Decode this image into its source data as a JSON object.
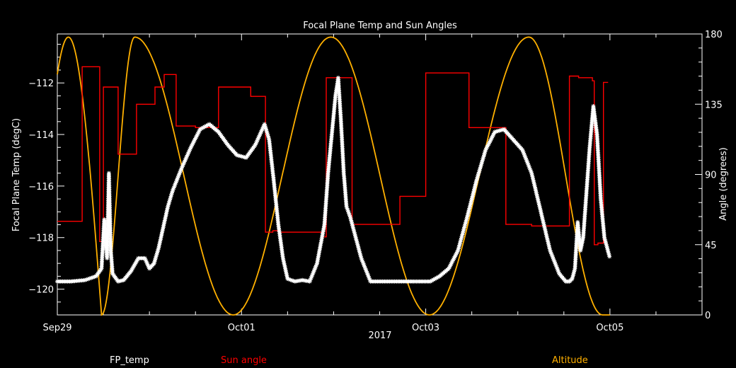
{
  "chart_data": {
    "type": "line",
    "title": "Focal Plane Temp and Sun Angles",
    "xlabel": "2017",
    "ylabel_left": "Focal Plane Temp (degC)",
    "ylabel_right": "Angle (degrees)",
    "x_ticks": [
      "Sep29",
      "Oct01",
      "Oct03",
      "Oct05"
    ],
    "x_tick_days": [
      0,
      2,
      4,
      6
    ],
    "x_range_days": [
      0,
      7.0
    ],
    "y_left_range": [
      -121,
      -110.1
    ],
    "y_left_ticks": [
      "−112",
      "−114",
      "−116",
      "−118",
      "−120"
    ],
    "y_left_tick_values": [
      -112,
      -114,
      -116,
      -118,
      -120
    ],
    "y_right_range": [
      0,
      180
    ],
    "y_right_ticks": [
      "180",
      "135",
      "90",
      "45",
      "0"
    ],
    "y_right_tick_values": [
      180,
      135,
      90,
      45,
      0
    ],
    "colors": {
      "fp_temp": "#ffffff",
      "sun_angle": "#ff0000",
      "altitude": "#ffb000"
    },
    "series": [
      {
        "name": "FP_temp",
        "marker": "asterisk",
        "x": [
          0.0,
          0.15,
          0.3,
          0.42,
          0.48,
          0.51,
          0.54,
          0.56,
          0.58,
          0.6,
          0.62,
          0.66,
          0.72,
          0.8,
          0.88,
          0.95,
          1.0,
          1.05,
          1.1,
          1.15,
          1.2,
          1.25,
          1.35,
          1.45,
          1.55,
          1.65,
          1.75,
          1.85,
          1.95,
          2.05,
          2.15,
          2.25,
          2.3,
          2.35,
          2.4,
          2.45,
          2.5,
          2.58,
          2.66,
          2.74,
          2.82,
          2.9,
          2.94,
          2.98,
          3.02,
          3.05,
          3.08,
          3.11,
          3.14,
          3.18,
          3.24,
          3.3,
          3.4,
          3.55,
          3.7,
          3.85,
          3.95,
          4.05,
          4.15,
          4.25,
          4.35,
          4.45,
          4.55,
          4.65,
          4.75,
          4.85,
          4.95,
          5.05,
          5.15,
          5.25,
          5.35,
          5.45,
          5.52,
          5.56,
          5.59,
          5.62,
          5.65,
          5.68,
          5.71,
          5.74,
          5.78,
          5.82,
          5.86,
          5.9,
          5.94,
          6.0
        ],
        "y": [
          -119.7,
          -119.7,
          -119.65,
          -119.5,
          -119.2,
          -117.3,
          -118.8,
          -115.5,
          -118.5,
          -119.4,
          -119.5,
          -119.7,
          -119.65,
          -119.3,
          -118.8,
          -118.8,
          -119.2,
          -119.0,
          -118.4,
          -117.6,
          -116.8,
          -116.2,
          -115.3,
          -114.5,
          -113.8,
          -113.6,
          -113.9,
          -114.4,
          -114.8,
          -114.9,
          -114.4,
          -113.6,
          -114.2,
          -115.8,
          -117.5,
          -118.8,
          -119.6,
          -119.7,
          -119.65,
          -119.7,
          -119.0,
          -117.5,
          -115.5,
          -114.0,
          -112.5,
          -111.8,
          -113.5,
          -115.5,
          -116.8,
          -117.2,
          -118.0,
          -118.8,
          -119.7,
          -119.7,
          -119.7,
          -119.7,
          -119.7,
          -119.7,
          -119.5,
          -119.2,
          -118.5,
          -117.2,
          -115.8,
          -114.6,
          -113.9,
          -113.8,
          -114.2,
          -114.6,
          -115.5,
          -117.0,
          -118.5,
          -119.4,
          -119.7,
          -119.7,
          -119.6,
          -119.2,
          -117.4,
          -118.5,
          -118.0,
          -116.5,
          -114.5,
          -112.9,
          -114.0,
          -116.5,
          -118.0,
          -118.8
        ]
      },
      {
        "name": "Sun angle",
        "step": true,
        "x": [
          0.0,
          0.27,
          0.27,
          0.46,
          0.46,
          0.5,
          0.5,
          0.66,
          0.66,
          0.86,
          0.86,
          1.06,
          1.06,
          1.16,
          1.16,
          1.29,
          1.29,
          1.5,
          1.5,
          1.75,
          1.75,
          2.1,
          2.1,
          2.26,
          2.26,
          2.34,
          2.34,
          2.4,
          2.4,
          2.88,
          2.88,
          2.92,
          2.92,
          3.2,
          3.2,
          3.47,
          3.47,
          3.72,
          3.72,
          4.0,
          4.0,
          4.47,
          4.47,
          4.87,
          4.87,
          5.15,
          5.15,
          5.56,
          5.56,
          5.66,
          5.66,
          5.81,
          5.81,
          5.83,
          5.83,
          5.87,
          5.87,
          5.93,
          5.93,
          5.98
        ],
        "y": [
          60,
          60,
          159,
          159,
          47,
          47,
          146,
          146,
          103,
          103,
          135,
          135,
          146,
          146,
          154,
          154,
          121,
          121,
          120,
          120,
          146,
          146,
          140,
          140,
          53,
          53,
          54,
          54,
          53,
          53,
          50,
          50,
          152,
          152,
          58,
          58,
          58,
          58,
          76,
          76,
          155,
          155,
          120,
          120,
          58,
          58,
          57,
          57,
          153,
          153,
          152,
          152,
          150,
          150,
          45,
          45,
          46,
          46,
          149,
          149
        ]
      },
      {
        "name": "Altitude",
        "peaks_days": [
          0.84,
          2.97,
          5.12
        ],
        "troughs_days": [
          0.48,
          1.91,
          4.04,
          5.92
        ],
        "min_deg": 0,
        "max_deg": 178,
        "range_days": [
          0.0,
          6.0
        ]
      }
    ],
    "legend": [
      "FP_temp",
      "Sun angle",
      "Altitude"
    ],
    "legend_placement": "bottom",
    "grid": false
  }
}
